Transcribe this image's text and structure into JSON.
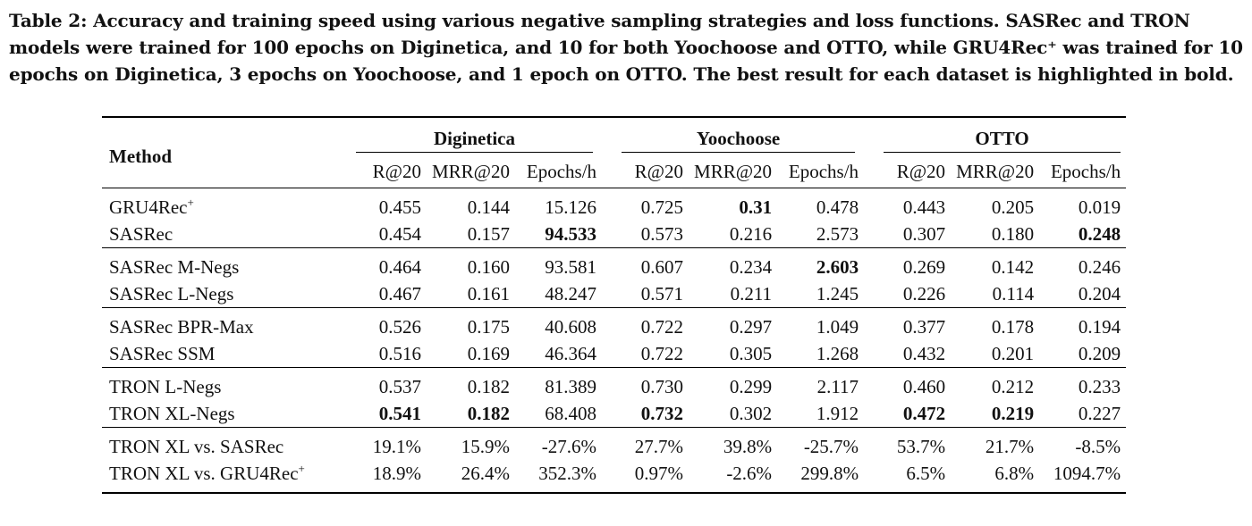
{
  "caption": "Table 2: Accuracy and training speed using various negative sampling strategies and loss functions. SASRec and TRON models were trained for 100 epochs on Diginetica, and 10 for both Yoochoose and OTTO, while GRU4Rec⁺ was trained for 10 epochs on Diginetica, 3 epochs on Yoochoose, and 1 epoch on OTTO. The best result for each dataset is highlighted in bold.",
  "header": {
    "method": "Method",
    "datasets": [
      "Diginetica",
      "Yoochoose",
      "OTTO"
    ],
    "metrics": [
      "R@20",
      "MRR@20",
      "Epochs/h"
    ]
  },
  "groups": [
    [
      {
        "method": "GRU4Rec",
        "sup": "+",
        "values": [
          "0.455",
          "0.144",
          "15.126",
          "0.725",
          "0.31",
          "0.478",
          "0.443",
          "0.205",
          "0.019"
        ],
        "bold": [
          4
        ]
      },
      {
        "method": "SASRec",
        "sup": "",
        "values": [
          "0.454",
          "0.157",
          "94.533",
          "0.573",
          "0.216",
          "2.573",
          "0.307",
          "0.180",
          "0.248"
        ],
        "bold": [
          2,
          8
        ]
      }
    ],
    [
      {
        "method": "SASRec M-Negs",
        "sup": "",
        "values": [
          "0.464",
          "0.160",
          "93.581",
          "0.607",
          "0.234",
          "2.603",
          "0.269",
          "0.142",
          "0.246"
        ],
        "bold": [
          5
        ]
      },
      {
        "method": "SASRec L-Negs",
        "sup": "",
        "values": [
          "0.467",
          "0.161",
          "48.247",
          "0.571",
          "0.211",
          "1.245",
          "0.226",
          "0.114",
          "0.204"
        ],
        "bold": []
      }
    ],
    [
      {
        "method": "SASRec BPR-Max",
        "sup": "",
        "values": [
          "0.526",
          "0.175",
          "40.608",
          "0.722",
          "0.297",
          "1.049",
          "0.377",
          "0.178",
          "0.194"
        ],
        "bold": []
      },
      {
        "method": "SASRec SSM",
        "sup": "",
        "values": [
          "0.516",
          "0.169",
          "46.364",
          "0.722",
          "0.305",
          "1.268",
          "0.432",
          "0.201",
          "0.209"
        ],
        "bold": []
      }
    ],
    [
      {
        "method": "TRON L-Negs",
        "sup": "",
        "values": [
          "0.537",
          "0.182",
          "81.389",
          "0.730",
          "0.299",
          "2.117",
          "0.460",
          "0.212",
          "0.233"
        ],
        "bold": []
      },
      {
        "method": "TRON XL-Negs",
        "sup": "",
        "values": [
          "0.541",
          "0.182",
          "68.408",
          "0.732",
          "0.302",
          "1.912",
          "0.472",
          "0.219",
          "0.227"
        ],
        "bold": [
          0,
          1,
          3,
          6,
          7
        ]
      }
    ],
    [
      {
        "method": "TRON XL vs. SASRec",
        "sup": "",
        "values": [
          "19.1%",
          "15.9%",
          "-27.6%",
          "27.7%",
          "39.8%",
          "-25.7%",
          "53.7%",
          "21.7%",
          "-8.5%"
        ],
        "bold": []
      },
      {
        "method": "TRON XL vs. GRU4Rec",
        "sup": "+",
        "values": [
          "18.9%",
          "26.4%",
          "352.3%",
          "0.97%",
          "-2.6%",
          "299.8%",
          "6.5%",
          "6.8%",
          "1094.7%"
        ],
        "bold": []
      }
    ]
  ]
}
